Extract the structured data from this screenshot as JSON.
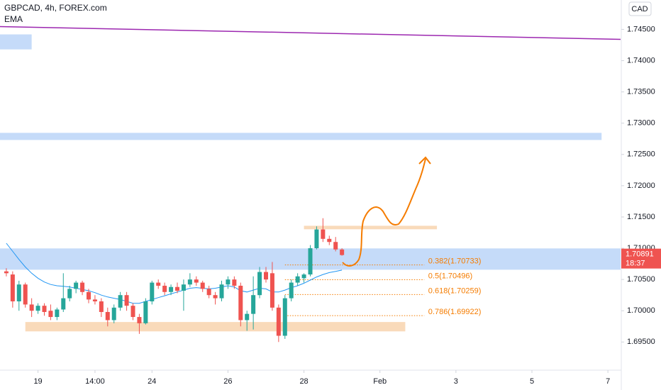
{
  "chart_data": {
    "type": "candlestick",
    "title": "GBPCAD, 4h, FOREX.com",
    "indicator": "EMA",
    "currency": "CAD",
    "x": [
      -5,
      -4,
      -3,
      -2,
      -1,
      0,
      1,
      2,
      3,
      4,
      5,
      6,
      7,
      8,
      9,
      10,
      11,
      12,
      13,
      14,
      15,
      16,
      17,
      18,
      19,
      20,
      21,
      22,
      23,
      24,
      25,
      26,
      27,
      28,
      29,
      30,
      31,
      32,
      33,
      34,
      35,
      36,
      37,
      38,
      39,
      40,
      41,
      42,
      43,
      44,
      45,
      46,
      47,
      48
    ],
    "open": [
      1.7063,
      1.7058,
      1.7015,
      1.7042,
      1.701,
      1.7,
      1.7008,
      1.7,
      1.699,
      1.7002,
      1.702,
      1.7035,
      1.7045,
      1.703,
      1.7018,
      1.7015,
      1.6998,
      1.6985,
      1.7005,
      1.7025,
      1.7008,
      1.699,
      1.698,
      1.7015,
      1.7045,
      1.704,
      1.703,
      1.7038,
      1.7032,
      1.7042,
      1.705,
      1.7045,
      1.7035,
      1.7025,
      1.702,
      1.7042,
      1.705,
      1.704,
      1.6985,
      1.6995,
      1.7025,
      1.7062,
      1.706,
      1.7005,
      1.696,
      1.702,
      1.7045,
      1.7052,
      1.7058,
      1.71,
      1.713,
      1.7115,
      1.711,
      1.7098
    ],
    "high": [
      1.7068,
      1.7063,
      1.7048,
      1.7045,
      1.702,
      1.7012,
      1.7012,
      1.701,
      1.7005,
      1.706,
      1.704,
      1.7048,
      1.7048,
      1.7035,
      1.7025,
      1.702,
      1.7005,
      1.701,
      1.703,
      1.703,
      1.7012,
      1.6995,
      1.702,
      1.7048,
      1.705,
      1.7045,
      1.7042,
      1.7045,
      1.705,
      1.706,
      1.7055,
      1.7048,
      1.704,
      1.703,
      1.7048,
      1.7055,
      1.7055,
      1.7045,
      1.7,
      1.7055,
      1.707,
      1.707,
      1.7078,
      1.701,
      1.7025,
      1.705,
      1.706,
      1.706,
      1.7105,
      1.7135,
      1.7148,
      1.712,
      1.7118,
      1.71
    ],
    "low": [
      1.7055,
      1.7005,
      1.7,
      1.7005,
      1.699,
      1.6995,
      1.6992,
      1.6985,
      1.6985,
      1.6998,
      1.7015,
      1.7028,
      1.7025,
      1.7012,
      1.701,
      1.699,
      1.6975,
      1.698,
      1.7,
      1.7,
      1.6985,
      1.6963,
      1.6978,
      1.701,
      1.7035,
      1.7025,
      1.7025,
      1.7028,
      1.7,
      1.7038,
      1.704,
      1.703,
      1.702,
      1.701,
      1.7015,
      1.7035,
      1.7035,
      1.6975,
      1.6968,
      1.697,
      1.702,
      1.7045,
      1.7,
      1.695,
      1.6955,
      1.7015,
      1.704,
      1.7045,
      1.7055,
      1.7098,
      1.711,
      1.7105,
      1.7095,
      1.7088
    ],
    "close": [
      1.706,
      1.7015,
      1.7042,
      1.701,
      1.7,
      1.7008,
      1.6998,
      1.699,
      1.7002,
      1.702,
      1.7035,
      1.7045,
      1.703,
      1.7018,
      1.7015,
      1.6998,
      1.6985,
      1.7005,
      1.7025,
      1.7008,
      1.699,
      1.698,
      1.7015,
      1.7045,
      1.704,
      1.703,
      1.7038,
      1.7032,
      1.7042,
      1.705,
      1.7045,
      1.7035,
      1.7025,
      1.702,
      1.7042,
      1.705,
      1.704,
      1.6985,
      1.6995,
      1.7025,
      1.7062,
      1.705,
      1.7005,
      1.696,
      1.702,
      1.7045,
      1.7055,
      1.7058,
      1.71,
      1.713,
      1.7115,
      1.711,
      1.7098,
      1.70891
    ],
    "up_color": "#26a69a",
    "down_color": "#ef5350",
    "ema": {
      "color": "#2196f3",
      "values": [
        1.7108,
        1.7095,
        1.7082,
        1.707,
        1.706,
        1.7052,
        1.7046,
        1.7042,
        1.704,
        1.7039,
        1.7038,
        1.7036,
        1.7034,
        1.7032,
        1.7029,
        1.7025,
        1.7022,
        1.702,
        1.7018,
        1.7015,
        1.7012,
        1.7012,
        1.7015,
        1.7018,
        1.7021,
        1.7024,
        1.7027,
        1.703,
        1.7033,
        1.7036,
        1.7037,
        1.7036,
        1.7035,
        1.7036,
        1.7038,
        1.704,
        1.7038,
        1.7032,
        1.703,
        1.7033,
        1.7036,
        1.7035,
        1.703,
        1.703,
        1.7033,
        1.7037,
        1.704,
        1.7044,
        1.7049,
        1.7054,
        1.7058,
        1.7061,
        1.7063,
        1.7065
      ]
    },
    "trend_line": {
      "color": "#9c27b0",
      "x": [
        -6,
        92
      ],
      "values": [
        1.74545,
        1.74341
      ]
    },
    "zones": [
      {
        "color": "#bbd5f8",
        "x": [
          -6,
          -1
        ],
        "y": [
          1.7418,
          1.7442
        ]
      },
      {
        "color": "#bbd5f8",
        "x": [
          -6,
          89
        ],
        "y": [
          1.72731,
          1.72845
        ]
      },
      {
        "color": "#bbd5f8",
        "x": [
          -6,
          92
        ],
        "y": [
          1.70656,
          1.70997
        ]
      },
      {
        "color": "#f8d3ae",
        "x": [
          -2,
          58
        ],
        "y": [
          1.6967,
          1.6982
        ]
      },
      {
        "color": "#f8d3ae",
        "x": [
          42,
          63
        ],
        "y": [
          1.71303,
          1.71359
        ]
      }
    ],
    "fib_color": "#f57c00",
    "fib_x": [
      39,
      61
    ],
    "fib_levels": [
      {
        "label": "0.382(1.70733)",
        "value": 1.70733
      },
      {
        "label": "0.5(1.70496)",
        "value": 1.70496
      },
      {
        "label": "0.618(1.70259)",
        "value": 1.70259
      },
      {
        "label": "0.786(1.69922)",
        "value": 1.69922
      }
    ],
    "last_price": 1.70891,
    "last_color": "#ef5350",
    "countdown": "18:37",
    "xlim": [
      -6,
      92
    ],
    "ylim": [
      1.6905,
      1.7497
    ],
    "xticks": [
      {
        "value": 0,
        "label": "19"
      },
      {
        "value": 9,
        "label": "14:00"
      },
      {
        "value": 18,
        "label": "24"
      },
      {
        "value": 30,
        "label": "26"
      },
      {
        "value": 42,
        "label": "28"
      },
      {
        "value": 54,
        "label": "Feb"
      },
      {
        "value": 66,
        "label": "3"
      },
      {
        "value": 78,
        "label": "5"
      },
      {
        "value": 90,
        "label": "7"
      }
    ],
    "yticks": [
      {
        "value": 1.745,
        "label": "1.74500"
      },
      {
        "value": 1.74,
        "label": "1.74000"
      },
      {
        "value": 1.735,
        "label": "1.73500"
      },
      {
        "value": 1.73,
        "label": "1.73000"
      },
      {
        "value": 1.725,
        "label": "1.72500"
      },
      {
        "value": 1.72,
        "label": "1.72000"
      },
      {
        "value": 1.715,
        "label": "1.71500"
      },
      {
        "value": 1.71,
        "label": "1.71000"
      },
      {
        "value": 1.705,
        "label": "1.70500"
      },
      {
        "value": 1.7,
        "label": "1.70000"
      },
      {
        "value": 1.695,
        "label": "1.69500"
      }
    ],
    "grid": false
  }
}
